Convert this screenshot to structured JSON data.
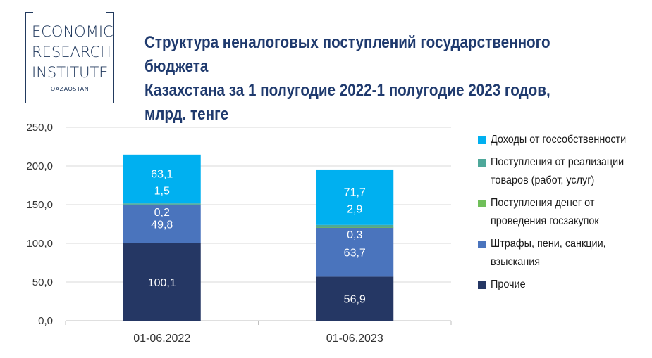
{
  "logo": {
    "line1": "ECONOMIC",
    "line2": "RESEARCH",
    "line3": "INSTITUTE",
    "sub": "QAZAQSTAN"
  },
  "title": {
    "line1": "Структура неналоговых поступлений государственного бюджета",
    "line2": "Казахстана за 1 полугодие 2022-1 полугодие 2023 годов, млрд. тенге"
  },
  "legend": [
    {
      "label_lines": [
        "Доходы от госсобственности"
      ],
      "color": "#00b0f0"
    },
    {
      "label_lines": [
        "Поступления от реализации",
        "товаров (работ, услуг)"
      ],
      "color": "#4ea89a"
    },
    {
      "label_lines": [
        "Поступления денег от",
        "проведения госзакупок"
      ],
      "color": "#70bf5a"
    },
    {
      "label_lines": [
        "Штрафы, пени, санкции,",
        "взыскания"
      ],
      "color": "#4a74bd"
    },
    {
      "label_lines": [
        "Прочие"
      ],
      "color": "#253764"
    }
  ],
  "chart_data": {
    "type": "bar",
    "stacked": true,
    "categories": [
      "01-06.2022",
      "01-06.2023"
    ],
    "series": [
      {
        "name": "Прочие",
        "color": "#253764",
        "values": [
          100.1,
          56.9
        ],
        "labels": [
          "100,1",
          "56,9"
        ]
      },
      {
        "name": "Штрафы, пени, санкции, взыскания",
        "color": "#4a74bd",
        "values": [
          49.8,
          63.7
        ],
        "labels": [
          "49,8",
          "63,7"
        ]
      },
      {
        "name": "Поступления денег от проведения госзакупок",
        "color": "#70bf5a",
        "values": [
          0.2,
          0.3
        ],
        "labels": [
          "0,2",
          "0,3"
        ]
      },
      {
        "name": "Поступления от реализации товаров (работ, услуг)",
        "color": "#4ea89a",
        "values": [
          1.5,
          2.9
        ],
        "labels": [
          "1,5",
          "2,9"
        ]
      },
      {
        "name": "Доходы от госсобственности",
        "color": "#00b0f0",
        "values": [
          63.1,
          71.7
        ],
        "labels": [
          "63,1",
          "71,7"
        ]
      }
    ],
    "ylim": [
      0,
      250
    ],
    "yticks": [
      "0,0",
      "50,0",
      "100,0",
      "150,0",
      "200,0",
      "250,0"
    ],
    "grid": true,
    "legend_position": "right"
  }
}
